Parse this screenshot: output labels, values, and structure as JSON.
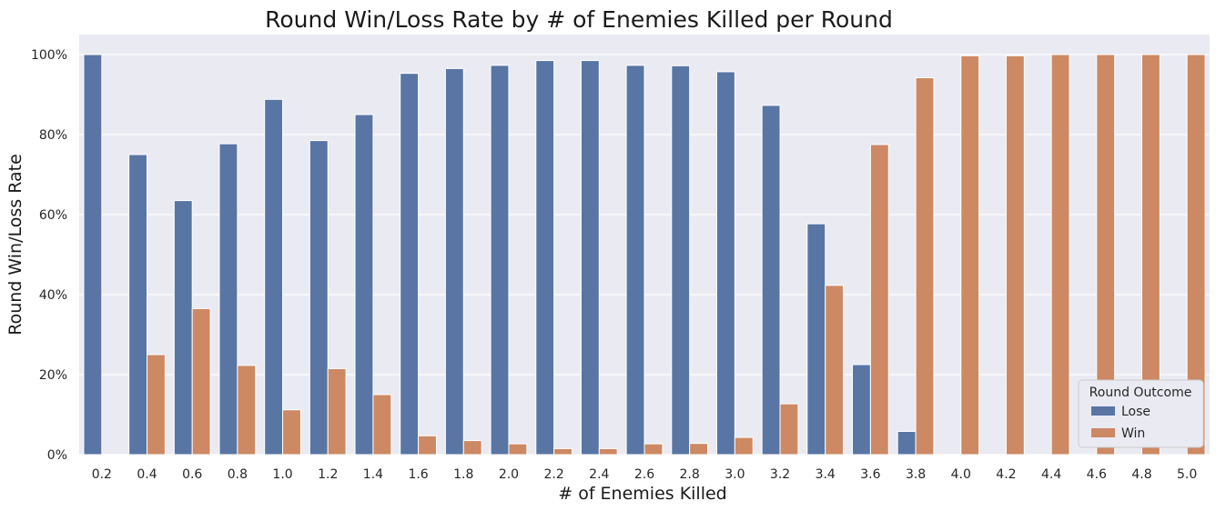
{
  "chart_data": {
    "type": "bar",
    "title": "Round Win/Loss Rate by # of Enemies Killed per Round",
    "xlabel": "# of Enemies Killed",
    "ylabel": "Round Win/Loss Rate",
    "ylim": [
      0,
      1.05
    ],
    "yticks": [
      0,
      0.2,
      0.4,
      0.6,
      0.8,
      1.0
    ],
    "ytick_labels": [
      "0%",
      "20%",
      "40%",
      "60%",
      "80%",
      "100%"
    ],
    "grid": true,
    "legend_placement": "bottom-right",
    "legend_title": "Round Outcome",
    "categories": [
      "0.2",
      "0.4",
      "0.6",
      "0.8",
      "1.0",
      "1.2",
      "1.4",
      "1.6",
      "1.8",
      "2.0",
      "2.2",
      "2.4",
      "2.6",
      "2.8",
      "3.0",
      "3.2",
      "3.4",
      "3.6",
      "3.8",
      "4.0",
      "4.2",
      "4.4",
      "4.6",
      "4.8",
      "5.0"
    ],
    "series": [
      {
        "name": "Lose",
        "color": "#5875a4",
        "values": [
          1.0,
          0.75,
          0.635,
          0.777,
          0.888,
          0.785,
          0.85,
          0.953,
          0.965,
          0.973,
          0.985,
          0.985,
          0.973,
          0.972,
          0.957,
          0.873,
          0.577,
          0.225,
          0.058,
          0.0,
          0.0,
          0.0,
          0.0,
          0.0,
          0.0
        ]
      },
      {
        "name": "Win",
        "color": "#cc8963",
        "values": [
          0.0,
          0.25,
          0.365,
          0.223,
          0.112,
          0.215,
          0.15,
          0.047,
          0.035,
          0.027,
          0.015,
          0.015,
          0.027,
          0.028,
          0.043,
          0.127,
          0.423,
          0.775,
          0.942,
          0.997,
          0.997,
          1.0,
          1.0,
          1.0,
          1.0
        ]
      }
    ]
  }
}
